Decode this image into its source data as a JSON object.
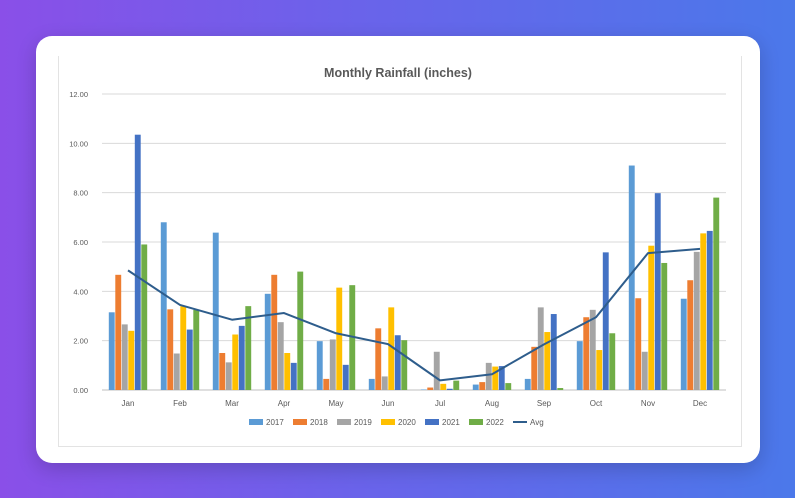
{
  "chart_data": {
    "type": "bar",
    "title": "Monthly Rainfall (inches)",
    "xlabel": "",
    "ylabel": "",
    "ylim": [
      0,
      12
    ],
    "yticks": [
      "0.00",
      "2.00",
      "4.00",
      "6.00",
      "8.00",
      "10.00",
      "12.00"
    ],
    "grid": true,
    "legend_position": "bottom",
    "categories": [
      "Jan",
      "Feb",
      "Mar",
      "Apr",
      "May",
      "Jun",
      "Jul",
      "Aug",
      "Sep",
      "Oct",
      "Nov",
      "Dec"
    ],
    "series": [
      {
        "name": "2017",
        "type": "bar",
        "color": "#5b9bd5",
        "values": [
          3.15,
          6.8,
          6.38,
          3.9,
          1.98,
          0.45,
          0.02,
          0.22,
          0.45,
          1.98,
          9.1,
          3.7
        ]
      },
      {
        "name": "2018",
        "type": "bar",
        "color": "#ed7d31",
        "values": [
          4.67,
          3.27,
          1.5,
          4.67,
          0.45,
          2.5,
          0.1,
          0.32,
          1.75,
          2.95,
          3.72,
          4.45
        ]
      },
      {
        "name": "2019",
        "type": "bar",
        "color": "#a5a5a5",
        "values": [
          2.66,
          1.48,
          1.12,
          2.75,
          2.05,
          0.55,
          1.55,
          1.1,
          3.35,
          3.25,
          1.55,
          5.6
        ]
      },
      {
        "name": "2020",
        "type": "bar",
        "color": "#ffc000",
        "values": [
          2.4,
          3.4,
          2.25,
          1.5,
          4.15,
          3.35,
          0.25,
          0.95,
          2.35,
          1.62,
          5.85,
          6.35
        ]
      },
      {
        "name": "2021",
        "type": "bar",
        "color": "#4472c4",
        "values": [
          10.35,
          2.45,
          2.6,
          1.1,
          1.02,
          2.22,
          0.05,
          0.97,
          3.08,
          5.58,
          7.98,
          6.45
        ]
      },
      {
        "name": "2022",
        "type": "bar",
        "color": "#70ad47",
        "values": [
          5.9,
          3.25,
          3.4,
          4.8,
          4.25,
          2.02,
          0.38,
          0.28,
          0.08,
          2.3,
          5.15,
          7.8
        ]
      },
      {
        "name": "Avg",
        "type": "line",
        "color": "#2e5d8c",
        "values": [
          4.85,
          3.45,
          2.85,
          3.12,
          2.3,
          1.86,
          0.39,
          0.64,
          1.85,
          2.95,
          5.55,
          5.72
        ]
      }
    ]
  }
}
